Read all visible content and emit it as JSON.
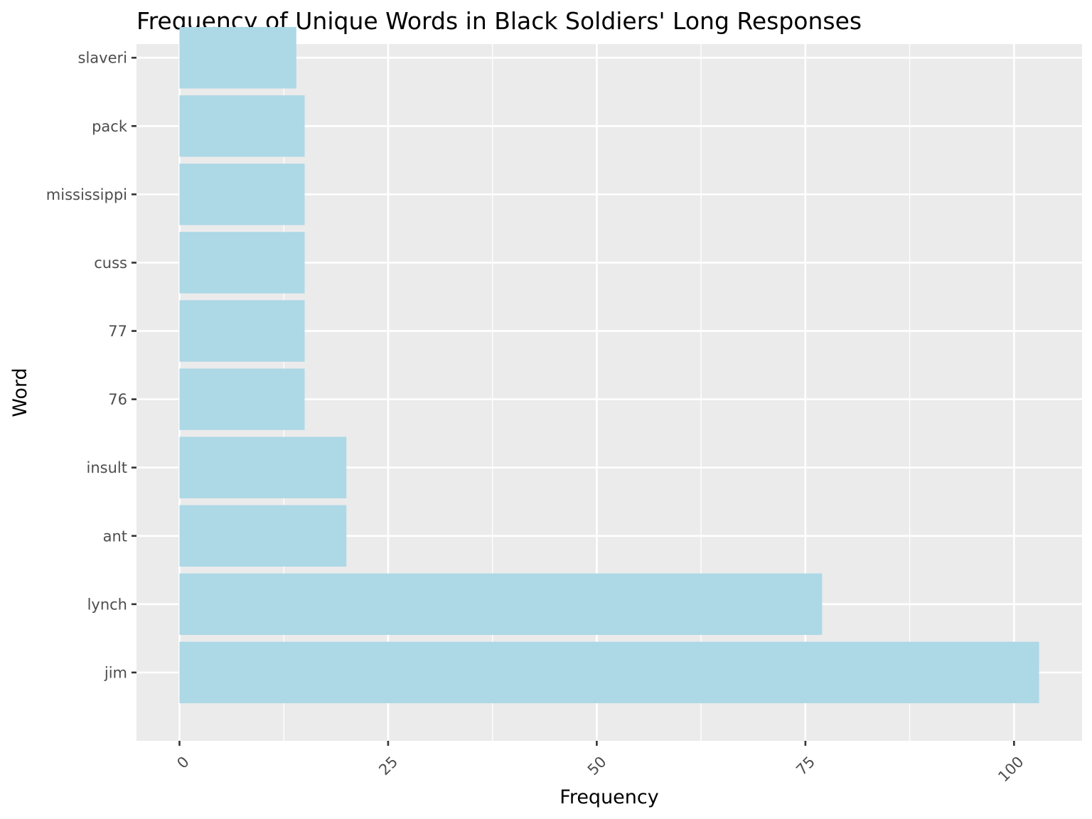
{
  "chart_data": {
    "type": "bar",
    "orientation": "horizontal",
    "title": "Frequency of Unique Words in Black Soldiers' Long Responses",
    "xlabel": "Frequency",
    "ylabel": "Word",
    "categories": [
      "jim",
      "lynch",
      "ant",
      "insult",
      "76",
      "77",
      "cuss",
      "mississippi",
      "pack",
      "slaveri"
    ],
    "values": [
      103,
      77,
      20,
      20,
      15,
      15,
      15,
      15,
      15,
      14
    ],
    "xlim": [
      -5.15,
      108.15
    ],
    "x_ticks": [
      0,
      25,
      50,
      75,
      100
    ],
    "x_tick_labels": [
      "0",
      "25",
      "50",
      "75",
      "100"
    ],
    "grid": true,
    "legend": "none",
    "colors": {
      "bar": "#add8e6",
      "panel": "#ebebeb",
      "grid": "#ffffff",
      "background": "#ffffff"
    }
  }
}
